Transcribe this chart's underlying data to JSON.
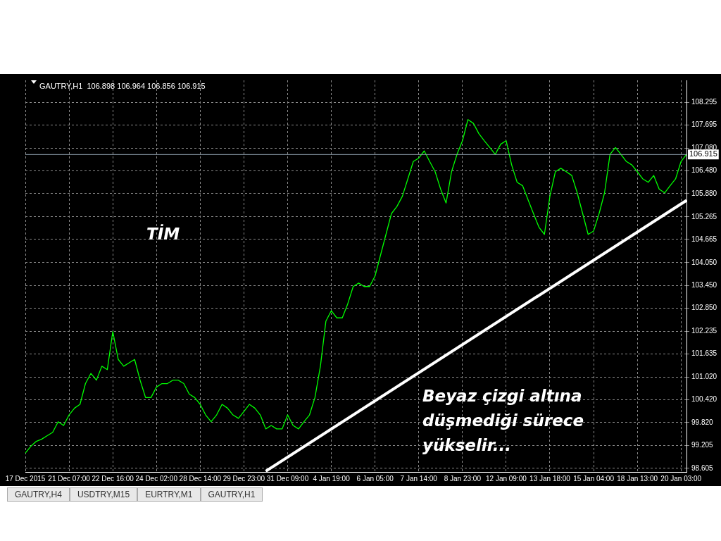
{
  "chart_data": {
    "type": "line",
    "title": "GAUTRY,H1  106.898 106.964 106.856 106.915",
    "categories": [
      "17 Dec 2015",
      null,
      null,
      null,
      null,
      null,
      null,
      null,
      "21 Dec 07:00",
      null,
      null,
      null,
      null,
      null,
      null,
      null,
      "22 Dec 16:00",
      null,
      null,
      null,
      null,
      null,
      null,
      null,
      "24 Dec 02:00",
      null,
      null,
      null,
      null,
      null,
      null,
      null,
      "28 Dec 14:00",
      null,
      null,
      null,
      null,
      null,
      null,
      null,
      "29 Dec 23:00",
      null,
      null,
      null,
      null,
      null,
      null,
      null,
      "31 Dec 09:00",
      null,
      null,
      null,
      null,
      null,
      null,
      null,
      "4 Jan 19:00",
      null,
      null,
      null,
      null,
      null,
      null,
      null,
      "6 Jan 05:00",
      null,
      null,
      null,
      null,
      null,
      null,
      null,
      "7 Jan 14:00",
      null,
      null,
      null,
      null,
      null,
      null,
      null,
      "8 Jan 23:00",
      null,
      null,
      null,
      null,
      null,
      null,
      null,
      "12 Jan 09:00",
      null,
      null,
      null,
      null,
      null,
      null,
      null,
      "13 Jan 18:00",
      null,
      null,
      null,
      null,
      null,
      null,
      null,
      "15 Jan 04:00",
      null,
      null,
      null,
      null,
      null,
      null,
      null,
      "18 Jan 13:00",
      null,
      null,
      null,
      null,
      null,
      null,
      null,
      "20 Jan 03:00",
      null
    ],
    "series": [
      {
        "color": "#00ff00",
        "values": [
          99.01,
          99.19,
          99.32,
          99.38,
          99.47,
          99.56,
          99.84,
          99.74,
          100.02,
          100.2,
          100.3,
          100.85,
          101.12,
          100.94,
          101.31,
          101.22,
          102.23,
          101.49,
          101.31,
          101.4,
          101.49,
          100.94,
          100.48,
          100.48,
          100.76,
          100.85,
          100.85,
          100.94,
          100.94,
          100.85,
          100.57,
          100.48,
          100.3,
          100.02,
          99.84,
          100.02,
          100.3,
          100.2,
          100.02,
          99.93,
          100.11,
          100.3,
          100.2,
          100.02,
          99.65,
          99.74,
          99.65,
          99.65,
          100.02,
          99.74,
          99.65,
          99.84,
          100.02,
          100.48,
          101.31,
          102.5,
          102.78,
          102.59,
          102.59,
          102.96,
          103.42,
          103.51,
          103.42,
          103.42,
          103.7,
          104.25,
          104.8,
          105.35,
          105.54,
          105.81,
          106.27,
          106.73,
          106.82,
          107.01,
          106.73,
          106.46,
          106.0,
          105.63,
          106.46,
          106.92,
          107.28,
          107.84,
          107.74,
          107.47,
          107.28,
          107.1,
          106.92,
          107.19,
          107.28,
          106.64,
          106.18,
          106.09,
          105.72,
          105.35,
          104.99,
          104.8,
          105.81,
          106.46,
          106.55,
          106.46,
          106.36,
          105.9,
          105.35,
          104.8,
          104.89,
          105.35,
          105.9,
          106.92,
          107.1,
          106.92,
          106.73,
          106.64,
          106.46,
          106.27,
          106.18,
          106.36,
          106.0,
          105.9,
          106.09,
          106.27,
          106.73,
          106.92
        ]
      },
      {
        "type": "line",
        "color": "#ffffff",
        "values": [
          null,
          null,
          null,
          null,
          null,
          null,
          null,
          null,
          null,
          null,
          null,
          null,
          null,
          null,
          null,
          null,
          null,
          null,
          null,
          null,
          null,
          null,
          null,
          null,
          null,
          null,
          null,
          null,
          null,
          null,
          null,
          null,
          null,
          null,
          null,
          null,
          null,
          null,
          null,
          null,
          null,
          null,
          null,
          null,
          98.53,
          null,
          null,
          null,
          null,
          null,
          null,
          null,
          null,
          null,
          null,
          null,
          null,
          null,
          null,
          null,
          null,
          null,
          null,
          null,
          null,
          null,
          null,
          null,
          null,
          null,
          null,
          null,
          null,
          null,
          null,
          null,
          null,
          null,
          null,
          null,
          null,
          null,
          null,
          null,
          null,
          null,
          null,
          null,
          null,
          null,
          null,
          null,
          null,
          null,
          null,
          null,
          null,
          null,
          null,
          null,
          null,
          null,
          null,
          null,
          null,
          null,
          null,
          null,
          null,
          null,
          null,
          null,
          null,
          null,
          null,
          null,
          null,
          null,
          null,
          null,
          null,
          105.7
        ]
      }
    ],
    "ylim": [
      98.51,
      108.88
    ],
    "yticks": [
      98.605,
      99.205,
      {
        "value": 99.82,
        "label": "99.820"
      },
      {
        "value": 100.42,
        "label": "100.420"
      },
      {
        "value": 101.02,
        "label": "101.020"
      },
      101.635,
      102.235,
      {
        "value": 102.85,
        "label": "102.850"
      },
      {
        "value": 103.45,
        "label": "103.450"
      },
      {
        "value": 104.05,
        "label": "104.050"
      },
      104.665,
      105.265,
      {
        "value": 105.88,
        "label": "105.880"
      },
      {
        "value": 106.48,
        "label": "106.480"
      },
      {
        "value": 107.08,
        "label": "107.080"
      },
      107.695,
      108.295
    ],
    "ref_lines": [
      {
        "axis": "y",
        "value": 106.915,
        "label": "106.915",
        "color": "#8a9aa8"
      }
    ],
    "grid": true,
    "legend": false,
    "marker": "none",
    "annotations": [
      "TİM",
      "Beyaz çizgi altına düşmediği sürece yükselir...",
      "GAUTRY,H4",
      "USDTRY,M15",
      "EURTRY,M1",
      "GAUTRY,H1"
    ]
  }
}
